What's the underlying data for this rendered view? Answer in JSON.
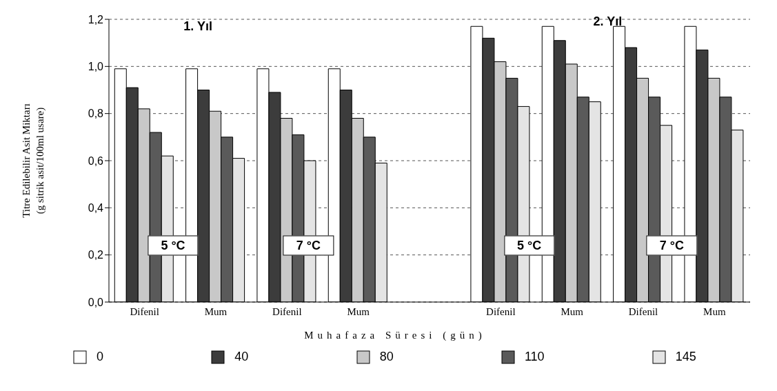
{
  "chart_data": {
    "type": "bar",
    "xlabel": "Muhafaza Süresi (gün)",
    "ylabel": "Titre Edilebilir Asit Miktarı\n(g sitrik asit/100ml usare)",
    "categories": [
      "Difenil",
      "Mum",
      "Difenil",
      "Mum",
      null,
      "Difenil",
      "Mum",
      "Difenil",
      "Mum"
    ],
    "series": [
      {
        "name": "0",
        "color": "#ffffff",
        "values": [
          0.99,
          0.99,
          0.99,
          0.99,
          null,
          1.17,
          1.17,
          1.17,
          1.17
        ]
      },
      {
        "name": "40",
        "color": "#3c3c3c",
        "values": [
          0.91,
          0.9,
          0.89,
          0.9,
          null,
          1.12,
          1.11,
          1.08,
          1.07
        ]
      },
      {
        "name": "80",
        "color": "#c8c8c8",
        "values": [
          0.82,
          0.81,
          0.78,
          0.78,
          null,
          1.02,
          1.01,
          0.95,
          0.95
        ]
      },
      {
        "name": "110",
        "color": "#5a5a5a",
        "values": [
          0.72,
          0.7,
          0.71,
          0.7,
          null,
          0.95,
          0.87,
          0.87,
          0.87
        ]
      },
      {
        "name": "145",
        "color": "#e4e4e4",
        "values": [
          0.62,
          0.61,
          0.6,
          0.59,
          null,
          0.83,
          0.85,
          0.75,
          0.73
        ]
      }
    ],
    "ylim": [
      0,
      1.2
    ],
    "yticks": [
      {
        "value": 0,
        "label": "0,0"
      },
      {
        "value": 0.2,
        "label": "0,2"
      },
      {
        "value": 0.4,
        "label": "0,4"
      },
      {
        "value": 0.6,
        "label": "0,6"
      },
      {
        "value": 0.8,
        "label": "0,8"
      },
      {
        "value": 1,
        "label": "1,0"
      },
      {
        "value": 1.2,
        "label": "1,2"
      }
    ],
    "grid": "y",
    "legend": "bottom",
    "annotations": [
      "1. Yıl",
      "2. Yıl",
      "5 °C",
      "7 °C",
      "5 °C",
      "7 °C"
    ]
  }
}
